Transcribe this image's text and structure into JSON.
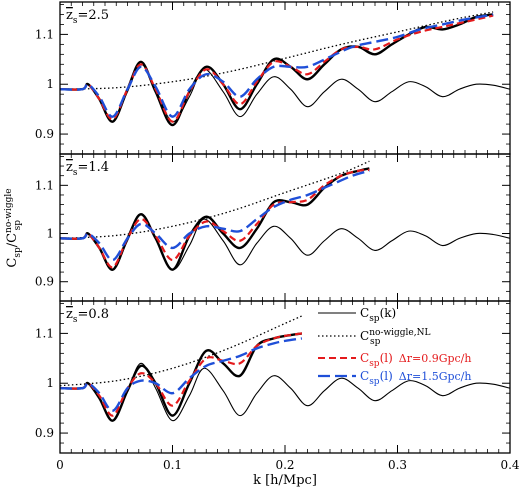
{
  "chart_data": {
    "type": "line",
    "xlabel": "k [h/Mpc]",
    "ylabel": {
      "main": "C",
      "sub": "sp",
      "sep": "/C",
      "sup2": "no-wiggle",
      "sub2": "sp"
    },
    "xlim": [
      0,
      0.4
    ],
    "x_ticks": [
      0,
      0.1,
      0.2,
      0.3,
      0.4
    ],
    "x_tick_labels": [
      "0",
      "0.1",
      "0.2",
      "0.3",
      "0.4"
    ],
    "legend": {
      "placement": "bottom panel, right",
      "entries": [
        {
          "series": "csp_k",
          "main": "C",
          "sub": "sp",
          "arg": "(k)",
          "extra": "",
          "color": "#000000",
          "dash": "solid"
        },
        {
          "series": "nowiggle_nl",
          "main": "C",
          "sub": "sp",
          "sup": "no-wiggle,NL",
          "arg": "",
          "extra": "",
          "color": "#000000",
          "dash": "dotted"
        },
        {
          "series": "dr_0.9",
          "main": "C",
          "sub": "sp",
          "arg": "(l)",
          "extra": "Δr=0.9Gpc/h",
          "color": "#e41a1c",
          "dash": "dashed"
        },
        {
          "series": "dr_1.5",
          "main": "C",
          "sub": "sp",
          "arg": "(l)",
          "extra": "Δr=1.5Gpc/h",
          "color": "#1f4fd8",
          "dash": "longdash"
        }
      ]
    },
    "colors": {
      "csp_k": "#000000",
      "nowiggle_nl": "#000000",
      "dr_0.9": "#e41a1c",
      "dr_1.5": "#1f4fd8"
    },
    "panels": [
      {
        "z_label": "z̄s=2.5",
        "z_prefix": "z",
        "z_sub": "s",
        "z_value": "=2.5",
        "ylim": [
          0.86,
          1.165
        ],
        "y_ticks": [
          0.9,
          1.0,
          1.1
        ],
        "y_tick_labels": [
          "0.9",
          "1",
          "1.1"
        ],
        "series": [
          {
            "key": "csp_k",
            "x": [
              0,
              0.02,
              0.025,
              0.035,
              0.047,
              0.06,
              0.072,
              0.085,
              0.1,
              0.115,
              0.128,
              0.145,
              0.16,
              0.175,
              0.19,
              0.205,
              0.22,
              0.235,
              0.25,
              0.265,
              0.28,
              0.295,
              0.31,
              0.325,
              0.34,
              0.355,
              0.37,
              0.385,
              0.4
            ],
            "y": [
              0.99,
              0.99,
              1.0,
              0.97,
              0.925,
              0.985,
              1.04,
              0.99,
              0.925,
              0.975,
              1.03,
              0.985,
              0.935,
              0.98,
              1.015,
              0.99,
              0.955,
              0.985,
              1.01,
              0.99,
              0.965,
              0.985,
              1.005,
              0.995,
              0.975,
              0.99,
              1.0,
              0.998,
              0.99
            ]
          },
          {
            "key": "nowiggle_nl",
            "x": [
              0,
              0.05,
              0.1,
              0.15,
              0.2,
              0.25,
              0.3,
              0.35,
              0.385
            ],
            "y": [
              0.99,
              0.993,
              1.005,
              1.025,
              1.052,
              1.08,
              1.105,
              1.13,
              1.145
            ]
          },
          {
            "key": "nl_thick",
            "x": [
              0,
              0.02,
              0.025,
              0.035,
              0.047,
              0.06,
              0.072,
              0.085,
              0.1,
              0.115,
              0.13,
              0.145,
              0.16,
              0.175,
              0.19,
              0.205,
              0.22,
              0.235,
              0.25,
              0.265,
              0.28,
              0.295,
              0.31,
              0.325,
              0.34,
              0.355,
              0.37,
              0.385
            ],
            "y": [
              0.99,
              0.99,
              1.0,
              0.97,
              0.925,
              0.99,
              1.045,
              0.985,
              0.918,
              0.985,
              1.035,
              1.0,
              0.95,
              1.0,
              1.05,
              1.035,
              1.01,
              1.04,
              1.07,
              1.075,
              1.06,
              1.08,
              1.1,
              1.115,
              1.11,
              1.12,
              1.135,
              1.14
            ]
          },
          {
            "key": "dr_0.9",
            "x": [
              0,
              0.02,
              0.025,
              0.035,
              0.047,
              0.06,
              0.072,
              0.085,
              0.1,
              0.115,
              0.13,
              0.145,
              0.16,
              0.175,
              0.19,
              0.205,
              0.22,
              0.235,
              0.25,
              0.265,
              0.28,
              0.3,
              0.32,
              0.34,
              0.36,
              0.38,
              0.385
            ],
            "y": [
              0.99,
              0.99,
              1.0,
              0.97,
              0.93,
              0.99,
              1.04,
              0.99,
              0.925,
              0.985,
              1.03,
              1.0,
              0.96,
              1.005,
              1.045,
              1.035,
              1.02,
              1.045,
              1.07,
              1.075,
              1.07,
              1.09,
              1.105,
              1.115,
              1.125,
              1.135,
              1.138
            ]
          },
          {
            "key": "dr_1.5",
            "x": [
              0,
              0.02,
              0.025,
              0.035,
              0.047,
              0.06,
              0.072,
              0.085,
              0.1,
              0.115,
              0.13,
              0.145,
              0.16,
              0.175,
              0.19,
              0.205,
              0.22,
              0.24,
              0.26,
              0.28,
              0.3,
              0.32,
              0.34,
              0.36,
              0.38,
              0.385
            ],
            "y": [
              0.99,
              0.99,
              1.0,
              0.975,
              0.935,
              0.99,
              1.035,
              0.995,
              0.935,
              0.99,
              1.02,
              1.005,
              0.975,
              1.01,
              1.035,
              1.035,
              1.035,
              1.055,
              1.075,
              1.085,
              1.095,
              1.11,
              1.12,
              1.13,
              1.138,
              1.14
            ]
          }
        ]
      },
      {
        "z_label": "z̄s=1.4",
        "z_prefix": "z",
        "z_sub": "s",
        "z_value": "=1.4",
        "ylim": [
          0.86,
          1.165
        ],
        "y_ticks": [
          0.9,
          1.0,
          1.1
        ],
        "y_tick_labels": [
          "0.9",
          "1",
          "1.1"
        ],
        "series": [
          {
            "key": "csp_k",
            "x": [
              0,
              0.02,
              0.025,
              0.035,
              0.047,
              0.06,
              0.072,
              0.085,
              0.1,
              0.115,
              0.128,
              0.145,
              0.16,
              0.175,
              0.19,
              0.205,
              0.22,
              0.235,
              0.25,
              0.265,
              0.28,
              0.295,
              0.31,
              0.325,
              0.34,
              0.355,
              0.37,
              0.385,
              0.4
            ],
            "y": [
              0.99,
              0.99,
              1.0,
              0.97,
              0.925,
              0.985,
              1.04,
              0.99,
              0.925,
              0.975,
              1.03,
              0.985,
              0.935,
              0.98,
              1.015,
              0.99,
              0.955,
              0.985,
              1.01,
              0.99,
              0.965,
              0.985,
              1.005,
              0.995,
              0.975,
              0.99,
              1.0,
              0.998,
              0.99
            ]
          },
          {
            "key": "nowiggle_nl",
            "x": [
              0,
              0.05,
              0.1,
              0.15,
              0.2,
              0.25,
              0.275
            ],
            "y": [
              0.99,
              0.996,
              1.015,
              1.045,
              1.085,
              1.125,
              1.15
            ]
          },
          {
            "key": "nl_thick",
            "x": [
              0,
              0.02,
              0.025,
              0.035,
              0.047,
              0.06,
              0.072,
              0.085,
              0.1,
              0.115,
              0.13,
              0.145,
              0.16,
              0.175,
              0.19,
              0.205,
              0.22,
              0.235,
              0.25,
              0.265,
              0.275
            ],
            "y": [
              0.99,
              0.99,
              1.0,
              0.97,
              0.925,
              0.99,
              1.04,
              0.99,
              0.925,
              0.995,
              1.035,
              1.0,
              0.97,
              1.01,
              1.065,
              1.065,
              1.06,
              1.095,
              1.12,
              1.13,
              1.135
            ]
          },
          {
            "key": "dr_0.9",
            "x": [
              0,
              0.02,
              0.025,
              0.035,
              0.047,
              0.06,
              0.072,
              0.085,
              0.1,
              0.115,
              0.13,
              0.145,
              0.16,
              0.175,
              0.19,
              0.205,
              0.22,
              0.235,
              0.25,
              0.265,
              0.275
            ],
            "y": [
              0.99,
              0.99,
              1.0,
              0.97,
              0.93,
              0.99,
              1.03,
              0.995,
              0.945,
              0.995,
              1.025,
              1.005,
              0.985,
              1.02,
              1.06,
              1.065,
              1.07,
              1.1,
              1.12,
              1.13,
              1.132
            ]
          },
          {
            "key": "dr_1.5",
            "x": [
              0,
              0.02,
              0.025,
              0.035,
              0.047,
              0.06,
              0.072,
              0.085,
              0.1,
              0.115,
              0.13,
              0.145,
              0.16,
              0.175,
              0.19,
              0.205,
              0.22,
              0.24,
              0.26,
              0.275
            ],
            "y": [
              0.99,
              0.99,
              1.0,
              0.98,
              0.945,
              0.99,
              1.02,
              1.0,
              0.97,
              1.0,
              1.015,
              1.01,
              1.005,
              1.03,
              1.055,
              1.07,
              1.08,
              1.1,
              1.12,
              1.13
            ]
          }
        ]
      },
      {
        "z_label": "z̄s=0.8",
        "z_prefix": "z",
        "z_sub": "s",
        "z_value": "=0.8",
        "ylim": [
          0.86,
          1.165
        ],
        "y_ticks": [
          0.9,
          1.0,
          1.1
        ],
        "y_tick_labels": [
          "0.9",
          "1",
          "1.1"
        ],
        "series": [
          {
            "key": "csp_k",
            "x": [
              0,
              0.02,
              0.025,
              0.035,
              0.047,
              0.06,
              0.072,
              0.085,
              0.1,
              0.115,
              0.128,
              0.145,
              0.16,
              0.175,
              0.19,
              0.205,
              0.22,
              0.235,
              0.25,
              0.265,
              0.28,
              0.295,
              0.31,
              0.325,
              0.34,
              0.355,
              0.37,
              0.385,
              0.4
            ],
            "y": [
              0.99,
              0.99,
              1.0,
              0.97,
              0.925,
              0.985,
              1.04,
              0.99,
              0.925,
              0.975,
              1.03,
              0.985,
              0.935,
              0.98,
              1.015,
              0.99,
              0.955,
              0.985,
              1.01,
              0.99,
              0.965,
              0.985,
              1.005,
              0.995,
              0.975,
              0.99,
              1.0,
              0.998,
              0.99
            ]
          },
          {
            "key": "nowiggle_nl",
            "x": [
              0,
              0.05,
              0.1,
              0.15,
              0.2,
              0.215
            ],
            "y": [
              0.995,
              1.005,
              1.03,
              1.07,
              1.12,
              1.135
            ]
          },
          {
            "key": "nl_thick",
            "x": [
              0,
              0.02,
              0.025,
              0.035,
              0.047,
              0.06,
              0.072,
              0.085,
              0.1,
              0.115,
              0.13,
              0.145,
              0.16,
              0.175,
              0.19,
              0.2,
              0.215
            ],
            "y": [
              0.99,
              0.99,
              1.0,
              0.97,
              0.925,
              0.985,
              1.035,
              1.0,
              0.935,
              1.0,
              1.065,
              1.04,
              1.015,
              1.075,
              1.09,
              1.095,
              1.1
            ]
          },
          {
            "key": "dr_0.9",
            "x": [
              0,
              0.02,
              0.025,
              0.035,
              0.047,
              0.06,
              0.072,
              0.085,
              0.1,
              0.115,
              0.13,
              0.145,
              0.16,
              0.175,
              0.19,
              0.2,
              0.215
            ],
            "y": [
              0.99,
              0.99,
              1.0,
              0.975,
              0.935,
              0.99,
              1.02,
              1.0,
              0.955,
              1.005,
              1.05,
              1.045,
              1.04,
              1.075,
              1.09,
              1.095,
              1.1
            ]
          },
          {
            "key": "dr_1.5",
            "x": [
              0,
              0.02,
              0.025,
              0.035,
              0.047,
              0.06,
              0.072,
              0.085,
              0.1,
              0.115,
              0.13,
              0.145,
              0.16,
              0.175,
              0.19,
              0.2,
              0.215
            ],
            "y": [
              0.99,
              0.99,
              1.0,
              0.98,
              0.945,
              0.99,
              1.005,
              1.0,
              0.98,
              1.01,
              1.035,
              1.045,
              1.055,
              1.07,
              1.08,
              1.085,
              1.09
            ]
          }
        ]
      }
    ]
  }
}
